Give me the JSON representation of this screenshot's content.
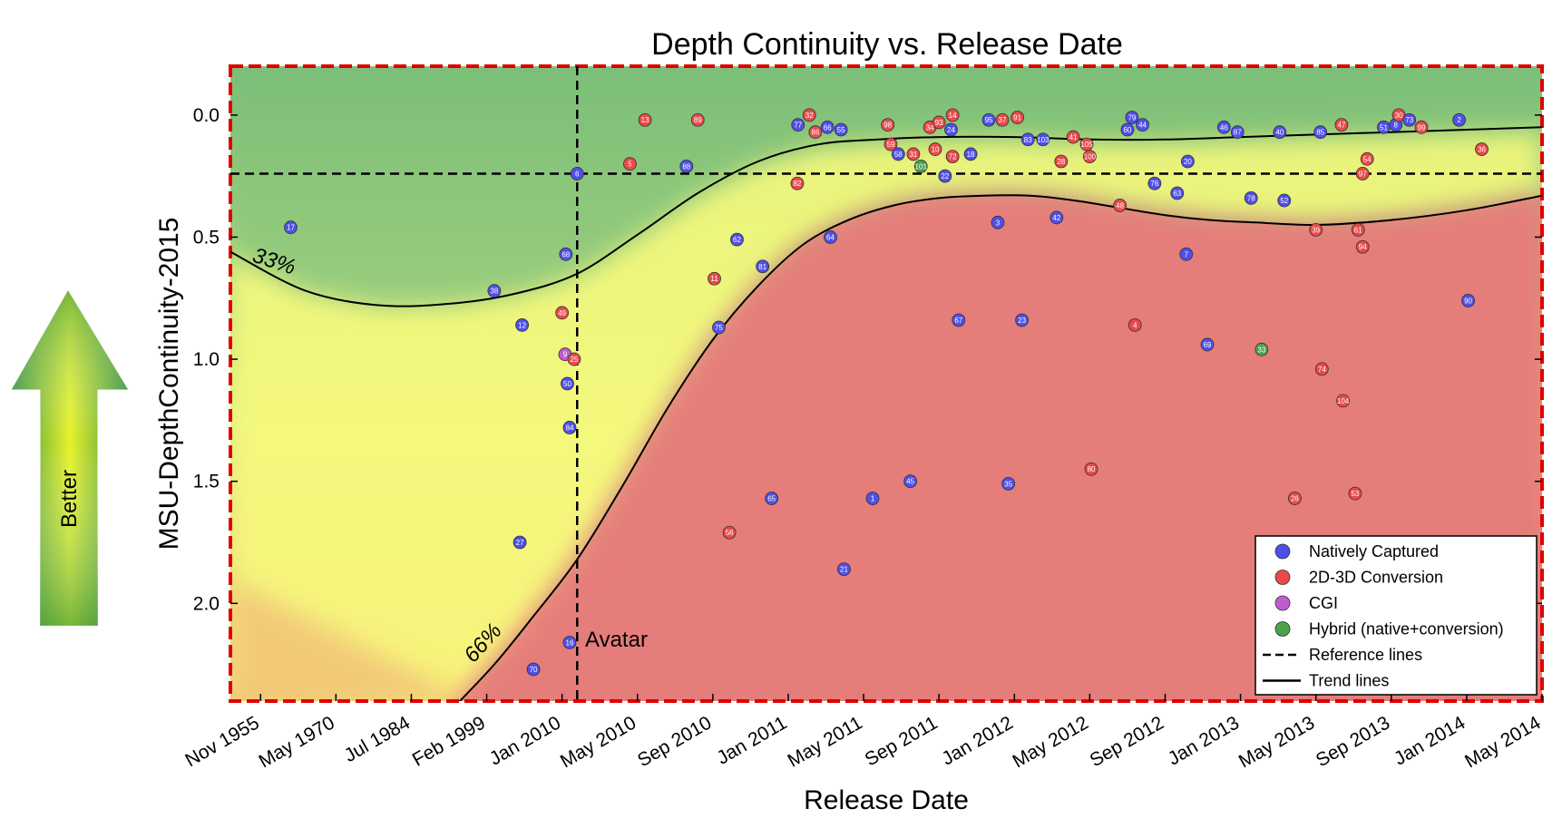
{
  "chart_data": {
    "type": "scatter",
    "title": "Depth Continuity vs. Release Date",
    "xlabel": "Release Date",
    "ylabel": "MSU-DepthContinuity-2015",
    "y_inverted": true,
    "ylim": [
      2.4,
      -0.2
    ],
    "y_ticks": [
      "0.0",
      "0.5",
      "1.0",
      "1.5",
      "2.0"
    ],
    "y_tick_values": [
      0.0,
      0.5,
      1.0,
      1.5,
      2.0
    ],
    "x_tick_labels": [
      "Nov 1955",
      "May 1970",
      "Jul 1984",
      "Feb 1999",
      "Jan 2010",
      "May 2010",
      "Sep 2010",
      "Jan 2011",
      "May 2011",
      "Sep 2011",
      "Jan 2012",
      "May 2012",
      "Sep 2012",
      "Jan 2013",
      "May 2013",
      "Sep 2013",
      "Jan 2014",
      "May 2014"
    ],
    "x_tick_positions": [
      0.4,
      1.4,
      2.4,
      3.4,
      4.4,
      5.4,
      6.4,
      7.4,
      8.4,
      9.4,
      10.4,
      11.4,
      12.4,
      13.4,
      14.4,
      15.4,
      16.4,
      17.4
    ],
    "xlim": [
      0,
      17.4
    ],
    "grid": false,
    "legend_position": "bottom-right",
    "annotations": {
      "pct_upper": "33%",
      "pct_lower": "66%",
      "avatar_label": "Avatar"
    },
    "side_arrow_label": "Better",
    "reference_lines": {
      "x": 4.6,
      "y": 0.24
    },
    "categories_colors": {
      "Natively Captured": "#4f4fe8",
      "2D-3D Conversion": "#e84a4a",
      "CGI": "#c05cd0",
      "Hybrid (native+conversion)": "#4aa24a"
    },
    "legend": [
      {
        "label": "Natively Captured",
        "kind": "dot",
        "color": "#4f4fe8"
      },
      {
        "label": "2D-3D Conversion",
        "kind": "dot",
        "color": "#e84a4a"
      },
      {
        "label": "CGI",
        "kind": "dot",
        "color": "#c05cd0"
      },
      {
        "label": "Hybrid (native+conversion)",
        "kind": "dot",
        "color": "#4aa24a"
      },
      {
        "label": "Reference lines",
        "kind": "dashed",
        "color": "#000000"
      },
      {
        "label": "Trend lines",
        "kind": "solid",
        "color": "#000000"
      }
    ],
    "trend_upper": [
      [
        0,
        0.56
      ],
      [
        1,
        0.72
      ],
      [
        2,
        0.78
      ],
      [
        3,
        0.77
      ],
      [
        3.8,
        0.73
      ],
      [
        4.6,
        0.65
      ],
      [
        5.4,
        0.49
      ],
      [
        6.2,
        0.32
      ],
      [
        7,
        0.19
      ],
      [
        7.8,
        0.12
      ],
      [
        8.6,
        0.1
      ],
      [
        9.4,
        0.09
      ],
      [
        10.4,
        0.09
      ],
      [
        11.4,
        0.1
      ],
      [
        12.4,
        0.1
      ],
      [
        13.4,
        0.09
      ],
      [
        14.4,
        0.08
      ],
      [
        15.4,
        0.07
      ],
      [
        16.4,
        0.06
      ],
      [
        17.4,
        0.05
      ]
    ],
    "trend_lower": [
      [
        2.95,
        2.43
      ],
      [
        3.5,
        2.25
      ],
      [
        4,
        2.06
      ],
      [
        4.6,
        1.82
      ],
      [
        5.2,
        1.52
      ],
      [
        5.8,
        1.2
      ],
      [
        6.4,
        0.92
      ],
      [
        7,
        0.7
      ],
      [
        7.6,
        0.53
      ],
      [
        8.2,
        0.43
      ],
      [
        8.8,
        0.37
      ],
      [
        9.4,
        0.34
      ],
      [
        10,
        0.33
      ],
      [
        10.6,
        0.33
      ],
      [
        11.2,
        0.35
      ],
      [
        11.8,
        0.38
      ],
      [
        12.4,
        0.41
      ],
      [
        13,
        0.43
      ],
      [
        13.6,
        0.44
      ],
      [
        14.4,
        0.45
      ],
      [
        15.4,
        0.43
      ],
      [
        16.4,
        0.39
      ],
      [
        17.4,
        0.33
      ]
    ],
    "points": [
      {
        "id": "17",
        "cat": "Natively Captured",
        "x": 0.8,
        "y": 0.46
      },
      {
        "id": "38",
        "cat": "Natively Captured",
        "x": 3.5,
        "y": 0.72
      },
      {
        "id": "12",
        "cat": "Natively Captured",
        "x": 3.87,
        "y": 0.86
      },
      {
        "id": "27",
        "cat": "Natively Captured",
        "x": 3.84,
        "y": 1.75
      },
      {
        "id": "70",
        "cat": "Natively Captured",
        "x": 4.02,
        "y": 2.27
      },
      {
        "id": "49",
        "cat": "2D-3D Conversion",
        "x": 4.4,
        "y": 0.81
      },
      {
        "id": "9",
        "cat": "CGI",
        "x": 4.44,
        "y": 0.98
      },
      {
        "id": "25",
        "cat": "2D-3D Conversion",
        "x": 4.56,
        "y": 1.0
      },
      {
        "id": "50",
        "cat": "Natively Captured",
        "x": 4.47,
        "y": 1.1
      },
      {
        "id": "84",
        "cat": "Natively Captured",
        "x": 4.5,
        "y": 1.28
      },
      {
        "id": "16",
        "cat": "Natively Captured",
        "x": 4.5,
        "y": 2.16
      },
      {
        "id": "68",
        "cat": "Natively Captured",
        "x": 4.45,
        "y": 0.57
      },
      {
        "id": "6",
        "cat": "Natively Captured",
        "x": 4.6,
        "y": 0.24
      },
      {
        "id": "5",
        "cat": "2D-3D Conversion",
        "x": 5.3,
        "y": 0.2
      },
      {
        "id": "13",
        "cat": "2D-3D Conversion",
        "x": 5.5,
        "y": 0.02
      },
      {
        "id": "88",
        "cat": "Natively Captured",
        "x": 6.05,
        "y": 0.21
      },
      {
        "id": "89",
        "cat": "2D-3D Conversion",
        "x": 6.2,
        "y": 0.02
      },
      {
        "id": "11",
        "cat": "2D-3D Conversion",
        "x": 6.42,
        "y": 0.67
      },
      {
        "id": "75",
        "cat": "Natively Captured",
        "x": 6.48,
        "y": 0.87
      },
      {
        "id": "56",
        "cat": "2D-3D Conversion",
        "x": 6.62,
        "y": 1.71
      },
      {
        "id": "62",
        "cat": "Natively Captured",
        "x": 6.72,
        "y": 0.51
      },
      {
        "id": "81",
        "cat": "Natively Captured",
        "x": 7.06,
        "y": 0.62
      },
      {
        "id": "65",
        "cat": "Natively Captured",
        "x": 7.18,
        "y": 1.57
      },
      {
        "id": "82",
        "cat": "2D-3D Conversion",
        "x": 7.52,
        "y": 0.28
      },
      {
        "id": "77",
        "cat": "Natively Captured",
        "x": 7.53,
        "y": 0.04
      },
      {
        "id": "32",
        "cat": "2D-3D Conversion",
        "x": 7.68,
        "y": 0.0
      },
      {
        "id": "86",
        "cat": "2D-3D Conversion",
        "x": 7.76,
        "y": 0.07
      },
      {
        "id": "66",
        "cat": "Natively Captured",
        "x": 7.92,
        "y": 0.05
      },
      {
        "id": "64",
        "cat": "Natively Captured",
        "x": 7.96,
        "y": 0.5
      },
      {
        "id": "55",
        "cat": "Natively Captured",
        "x": 8.1,
        "y": 0.06
      },
      {
        "id": "21",
        "cat": "Natively Captured",
        "x": 8.14,
        "y": 1.86
      },
      {
        "id": "1",
        "cat": "Natively Captured",
        "x": 8.52,
        "y": 1.57
      },
      {
        "id": "98",
        "cat": "2D-3D Conversion",
        "x": 8.72,
        "y": 0.04
      },
      {
        "id": "59",
        "cat": "2D-3D Conversion",
        "x": 8.76,
        "y": 0.12
      },
      {
        "id": "58",
        "cat": "Natively Captured",
        "x": 8.86,
        "y": 0.16
      },
      {
        "id": "31",
        "cat": "2D-3D Conversion",
        "x": 9.06,
        "y": 0.16
      },
      {
        "id": "45",
        "cat": "Natively Captured",
        "x": 9.02,
        "y": 1.5
      },
      {
        "id": "101",
        "cat": "Hybrid (native+conversion)",
        "x": 9.16,
        "y": 0.21
      },
      {
        "id": "34",
        "cat": "2D-3D Conversion",
        "x": 9.28,
        "y": 0.05
      },
      {
        "id": "10",
        "cat": "2D-3D Conversion",
        "x": 9.35,
        "y": 0.14
      },
      {
        "id": "93",
        "cat": "2D-3D Conversion",
        "x": 9.4,
        "y": 0.03
      },
      {
        "id": "22",
        "cat": "Natively Captured",
        "x": 9.48,
        "y": 0.25
      },
      {
        "id": "14",
        "cat": "2D-3D Conversion",
        "x": 9.58,
        "y": 0.0
      },
      {
        "id": "24",
        "cat": "Natively Captured",
        "x": 9.56,
        "y": 0.06
      },
      {
        "id": "72",
        "cat": "2D-3D Conversion",
        "x": 9.58,
        "y": 0.17
      },
      {
        "id": "67",
        "cat": "Natively Captured",
        "x": 9.66,
        "y": 0.84
      },
      {
        "id": "18",
        "cat": "Natively Captured",
        "x": 9.82,
        "y": 0.16
      },
      {
        "id": "3",
        "cat": "Natively Captured",
        "x": 10.18,
        "y": 0.44
      },
      {
        "id": "95",
        "cat": "Natively Captured",
        "x": 10.06,
        "y": 0.02
      },
      {
        "id": "37",
        "cat": "2D-3D Conversion",
        "x": 10.24,
        "y": 0.02
      },
      {
        "id": "35",
        "cat": "Natively Captured",
        "x": 10.32,
        "y": 1.51
      },
      {
        "id": "91",
        "cat": "2D-3D Conversion",
        "x": 10.44,
        "y": 0.01
      },
      {
        "id": "23",
        "cat": "Natively Captured",
        "x": 10.5,
        "y": 0.84
      },
      {
        "id": "83",
        "cat": "Natively Captured",
        "x": 10.58,
        "y": 0.1
      },
      {
        "id": "103",
        "cat": "Natively Captured",
        "x": 10.78,
        "y": 0.1
      },
      {
        "id": "42",
        "cat": "Natively Captured",
        "x": 10.96,
        "y": 0.42
      },
      {
        "id": "28",
        "cat": "2D-3D Conversion",
        "x": 11.02,
        "y": 0.19
      },
      {
        "id": "41",
        "cat": "2D-3D Conversion",
        "x": 11.18,
        "y": 0.09
      },
      {
        "id": "105",
        "cat": "2D-3D Conversion",
        "x": 11.36,
        "y": 0.12
      },
      {
        "id": "100",
        "cat": "2D-3D Conversion",
        "x": 11.4,
        "y": 0.17
      },
      {
        "id": "80",
        "cat": "2D-3D Conversion",
        "x": 11.42,
        "y": 1.45
      },
      {
        "id": "48",
        "cat": "2D-3D Conversion",
        "x": 11.8,
        "y": 0.37
      },
      {
        "id": "60",
        "cat": "Natively Captured",
        "x": 11.9,
        "y": 0.06
      },
      {
        "id": "79",
        "cat": "Natively Captured",
        "x": 11.96,
        "y": 0.01
      },
      {
        "id": "44",
        "cat": "Natively Captured",
        "x": 12.1,
        "y": 0.04
      },
      {
        "id": "4",
        "cat": "2D-3D Conversion",
        "x": 12.0,
        "y": 0.86
      },
      {
        "id": "76",
        "cat": "Natively Captured",
        "x": 12.26,
        "y": 0.28
      },
      {
        "id": "63",
        "cat": "Natively Captured",
        "x": 12.56,
        "y": 0.32
      },
      {
        "id": "20",
        "cat": "Natively Captured",
        "x": 12.7,
        "y": 0.19
      },
      {
        "id": "7",
        "cat": "Natively Captured",
        "x": 12.68,
        "y": 0.57
      },
      {
        "id": "69",
        "cat": "Natively Captured",
        "x": 12.96,
        "y": 0.94
      },
      {
        "id": "46",
        "cat": "Natively Captured",
        "x": 13.18,
        "y": 0.05
      },
      {
        "id": "87",
        "cat": "Natively Captured",
        "x": 13.36,
        "y": 0.07
      },
      {
        "id": "78",
        "cat": "Natively Captured",
        "x": 13.54,
        "y": 0.34
      },
      {
        "id": "33",
        "cat": "Hybrid (native+conversion)",
        "x": 13.68,
        "y": 0.96
      },
      {
        "id": "40",
        "cat": "Natively Captured",
        "x": 13.92,
        "y": 0.07
      },
      {
        "id": "52",
        "cat": "Natively Captured",
        "x": 13.98,
        "y": 0.35
      },
      {
        "id": "26",
        "cat": "2D-3D Conversion",
        "x": 14.12,
        "y": 1.57
      },
      {
        "id": "39",
        "cat": "2D-3D Conversion",
        "x": 14.4,
        "y": 0.47
      },
      {
        "id": "85",
        "cat": "Natively Captured",
        "x": 14.46,
        "y": 0.07
      },
      {
        "id": "74",
        "cat": "2D-3D Conversion",
        "x": 14.48,
        "y": 1.04
      },
      {
        "id": "47",
        "cat": "2D-3D Conversion",
        "x": 14.74,
        "y": 0.04
      },
      {
        "id": "104",
        "cat": "2D-3D Conversion",
        "x": 14.76,
        "y": 1.17
      },
      {
        "id": "53",
        "cat": "2D-3D Conversion",
        "x": 14.92,
        "y": 1.55
      },
      {
        "id": "61",
        "cat": "2D-3D Conversion",
        "x": 14.96,
        "y": 0.47
      },
      {
        "id": "94",
        "cat": "2D-3D Conversion",
        "x": 15.02,
        "y": 0.54
      },
      {
        "id": "97",
        "cat": "2D-3D Conversion",
        "x": 15.02,
        "y": 0.24
      },
      {
        "id": "54",
        "cat": "2D-3D Conversion",
        "x": 15.08,
        "y": 0.18
      },
      {
        "id": "51",
        "cat": "Natively Captured",
        "x": 15.3,
        "y": 0.05
      },
      {
        "id": "8",
        "cat": "Natively Captured",
        "x": 15.46,
        "y": 0.04
      },
      {
        "id": "30",
        "cat": "2D-3D Conversion",
        "x": 15.5,
        "y": 0.0
      },
      {
        "id": "73",
        "cat": "Natively Captured",
        "x": 15.64,
        "y": 0.02
      },
      {
        "id": "99",
        "cat": "2D-3D Conversion",
        "x": 15.8,
        "y": 0.05
      },
      {
        "id": "2",
        "cat": "Natively Captured",
        "x": 16.3,
        "y": 0.02
      },
      {
        "id": "90",
        "cat": "Natively Captured",
        "x": 16.42,
        "y": 0.76
      },
      {
        "id": "36",
        "cat": "2D-3D Conversion",
        "x": 16.6,
        "y": 0.14
      }
    ]
  }
}
